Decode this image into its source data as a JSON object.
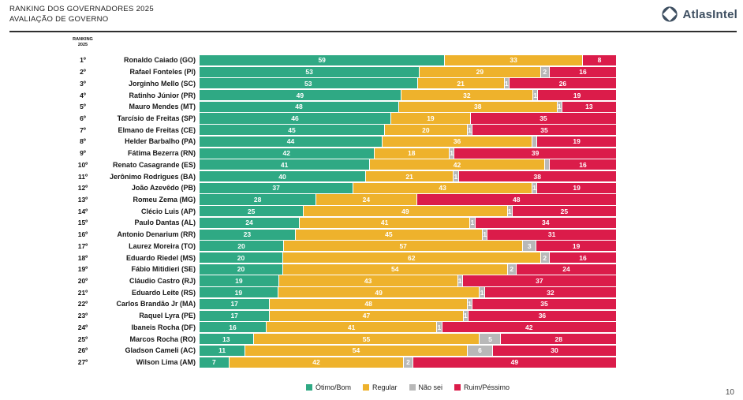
{
  "header": {
    "title_line1": "RANKING DOS GOVERNADORES 2025",
    "title_line2": "AVALIAÇÃO DE GOVERNO",
    "brand": "AtlasIntel"
  },
  "column_header": {
    "line1": "RANKING",
    "line2": "2025"
  },
  "page_number": "10",
  "colors": {
    "otimo_bom": "#2fa984",
    "regular": "#eeb22c",
    "nao_sei": "#b8b8b8",
    "ruim_pessimo": "#db1c4a",
    "brand": "#3e4f61"
  },
  "chart_data": {
    "type": "bar",
    "stacked": true,
    "orientation": "horizontal",
    "unit": "percent",
    "title": "RANKING DOS GOVERNADORES 2025",
    "subtitle": "AVALIAÇÃO DE GOVERNO",
    "legend_position": "bottom",
    "series_keys": [
      "otimo_bom",
      "regular",
      "nao_sei",
      "ruim_pessimo"
    ],
    "legend": [
      {
        "key": "otimo_bom",
        "label": "Ótimo/Bom"
      },
      {
        "key": "regular",
        "label": "Regular"
      },
      {
        "key": "nao_sei",
        "label": "Não sei"
      },
      {
        "key": "ruim_pessimo",
        "label": "Ruim/Péssimo"
      }
    ],
    "rows": [
      {
        "rank": "1º",
        "name": "Ronaldo Caiado (GO)",
        "otimo_bom": 59,
        "regular": 33,
        "nao_sei": 0,
        "ruim_pessimo": 8
      },
      {
        "rank": "2º",
        "name": "Rafael Fonteles (PI)",
        "otimo_bom": 53,
        "regular": 29,
        "nao_sei": 2,
        "ruim_pessimo": 16
      },
      {
        "rank": "3º",
        "name": "Jorginho Mello (SC)",
        "otimo_bom": 53,
        "regular": 21,
        "nao_sei": 1,
        "ruim_pessimo": 26
      },
      {
        "rank": "4º",
        "name": "Ratinho Júnior (PR)",
        "otimo_bom": 49,
        "regular": 32,
        "nao_sei": 1,
        "ruim_pessimo": 19
      },
      {
        "rank": "5º",
        "name": "Mauro Mendes (MT)",
        "otimo_bom": 48,
        "regular": 38,
        "nao_sei": 1,
        "ruim_pessimo": 13
      },
      {
        "rank": "6º",
        "name": "Tarcísio de Freitas (SP)",
        "otimo_bom": 46,
        "regular": 19,
        "nao_sei": 0,
        "ruim_pessimo": 35
      },
      {
        "rank": "7º",
        "name": "Elmano de Freitas (CE)",
        "otimo_bom": 45,
        "regular": 20,
        "nao_sei": 1,
        "ruim_pessimo": 35
      },
      {
        "rank": "8º",
        "name": "Helder Barbalho (PA)",
        "otimo_bom": 44,
        "regular": 36,
        "nao_sei": 1,
        "nao_sei_label": "",
        "ruim_pessimo": 19
      },
      {
        "rank": "9º",
        "name": "Fátima Bezerra (RN)",
        "otimo_bom": 42,
        "regular": 18,
        "nao_sei": 1,
        "ruim_pessimo": 39
      },
      {
        "rank": "10º",
        "name": "Renato Casagrande (ES)",
        "otimo_bom": 41,
        "regular": 42,
        "nao_sei": 1,
        "nao_sei_label": "",
        "ruim_pessimo": 16
      },
      {
        "rank": "11º",
        "name": "Jerônimo Rodrigues (BA)",
        "otimo_bom": 40,
        "regular": 21,
        "nao_sei": 1,
        "ruim_pessimo": 38
      },
      {
        "rank": "12º",
        "name": "João Azevêdo (PB)",
        "otimo_bom": 37,
        "regular": 43,
        "nao_sei": 1,
        "ruim_pessimo": 19
      },
      {
        "rank": "13º",
        "name": "Romeu Zema (MG)",
        "otimo_bom": 28,
        "regular": 24,
        "nao_sei": 0,
        "ruim_pessimo": 48
      },
      {
        "rank": "14º",
        "name": "Clécio Luis (AP)",
        "otimo_bom": 25,
        "regular": 49,
        "nao_sei": 1,
        "ruim_pessimo": 25
      },
      {
        "rank": "15º",
        "name": "Paulo Dantas (AL)",
        "otimo_bom": 24,
        "regular": 41,
        "nao_sei": 1,
        "ruim_pessimo": 34
      },
      {
        "rank": "16º",
        "name": "Antonio Denarium (RR)",
        "otimo_bom": 23,
        "regular": 45,
        "nao_sei": 1,
        "ruim_pessimo": 31
      },
      {
        "rank": "17º",
        "name": "Laurez Moreira (TO)",
        "otimo_bom": 20,
        "regular": 57,
        "nao_sei": 3,
        "ruim_pessimo": 19
      },
      {
        "rank": "18º",
        "name": "Eduardo Riedel (MS)",
        "otimo_bom": 20,
        "regular": 62,
        "nao_sei": 2,
        "ruim_pessimo": 16
      },
      {
        "rank": "19º",
        "name": "Fábio Mitidieri (SE)",
        "otimo_bom": 20,
        "regular": 54,
        "nao_sei": 2,
        "ruim_pessimo": 24
      },
      {
        "rank": "20º",
        "name": "Cláudio Castro (RJ)",
        "otimo_bom": 19,
        "regular": 43,
        "nao_sei": 1,
        "ruim_pessimo": 37
      },
      {
        "rank": "21º",
        "name": "Eduardo Leite (RS)",
        "otimo_bom": 19,
        "regular": 49,
        "nao_sei": 1,
        "ruim_pessimo": 32
      },
      {
        "rank": "22º",
        "name": "Carlos Brandão Jr (MA)",
        "otimo_bom": 17,
        "regular": 48,
        "nao_sei": 1,
        "ruim_pessimo": 35
      },
      {
        "rank": "23º",
        "name": "Raquel Lyra (PE)",
        "otimo_bom": 17,
        "regular": 47,
        "nao_sei": 1,
        "ruim_pessimo": 36
      },
      {
        "rank": "24º",
        "name": "Ibaneis Rocha (DF)",
        "otimo_bom": 16,
        "regular": 41,
        "nao_sei": 1,
        "ruim_pessimo": 42
      },
      {
        "rank": "25º",
        "name": "Marcos Rocha (RO)",
        "otimo_bom": 13,
        "regular": 55,
        "nao_sei": 5,
        "ruim_pessimo": 28
      },
      {
        "rank": "26º",
        "name": "Gladson Cameli (AC)",
        "otimo_bom": 11,
        "regular": 54,
        "nao_sei": 6,
        "ruim_pessimo": 30
      },
      {
        "rank": "27º",
        "name": "Wilson Lima (AM)",
        "otimo_bom": 7,
        "regular": 42,
        "nao_sei": 2,
        "ruim_pessimo": 49
      }
    ]
  }
}
